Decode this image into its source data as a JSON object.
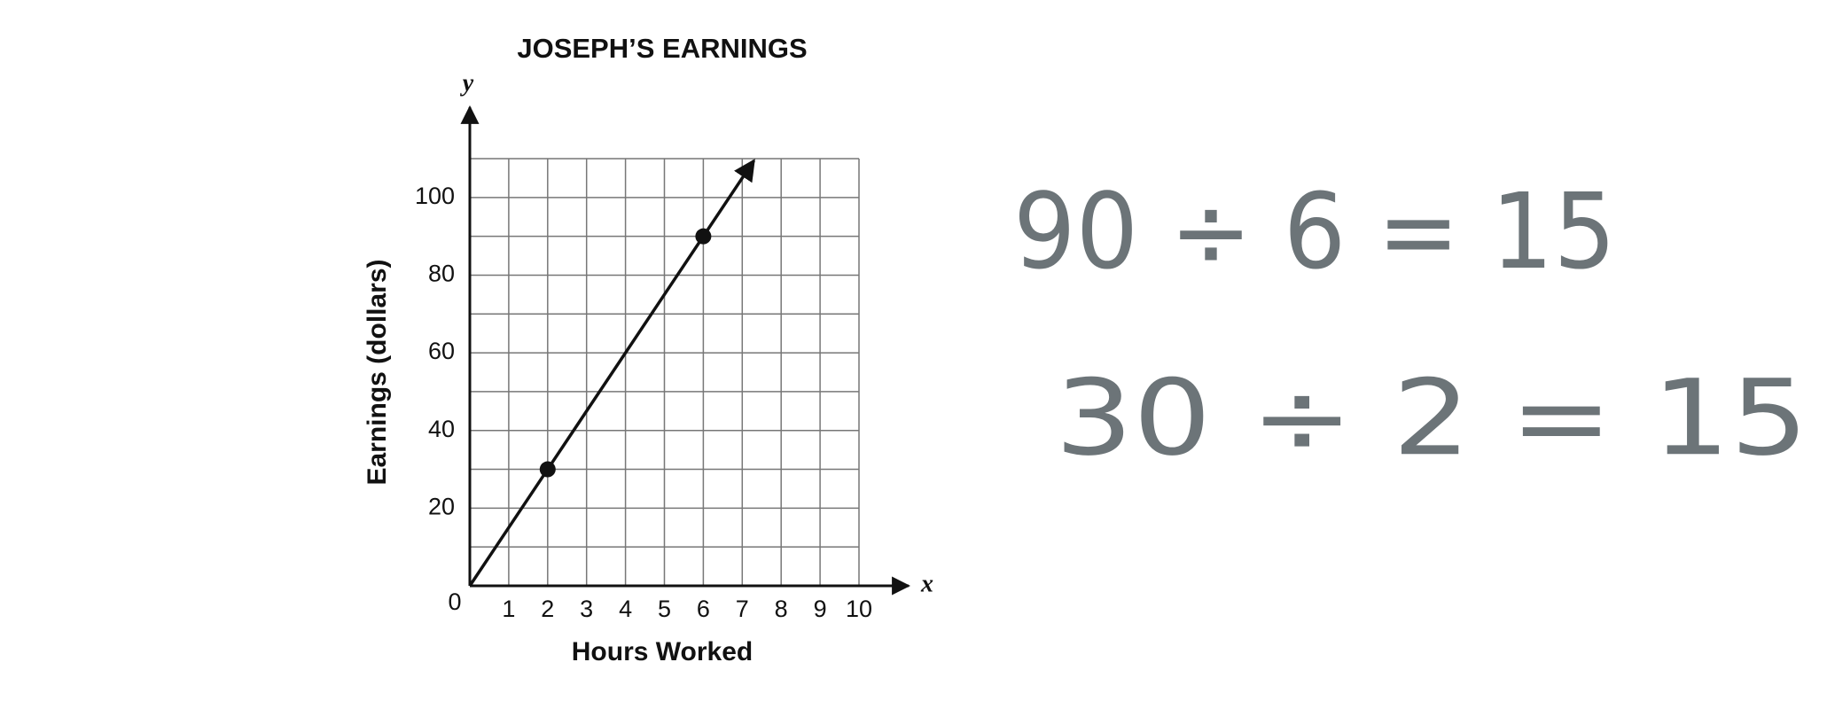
{
  "chart_data": {
    "type": "line",
    "title": "JOSEPH’S EARNINGS",
    "x_label": "Hours Worked",
    "y_label": "Earnings (dollars)",
    "x_axis_letter": "x",
    "y_axis_letter": "y",
    "xlim": [
      0,
      10
    ],
    "ylim": [
      0,
      110
    ],
    "xticks": [
      0,
      1,
      2,
      3,
      4,
      5,
      6,
      7,
      8,
      9,
      10
    ],
    "yticks": [
      20,
      40,
      60,
      80,
      100
    ],
    "minor_yticks": [
      10,
      30,
      50,
      70,
      90,
      110
    ],
    "grid": true,
    "x": [
      0,
      2,
      6,
      7.3
    ],
    "values": [
      0,
      30,
      90,
      109.5
    ],
    "color": "#111111",
    "arrow": true,
    "points": {
      "x": [
        2,
        6
      ],
      "values": [
        30,
        90
      ]
    },
    "annotations": [
      "90 ÷ 6 = 15",
      "30 ÷ 2 = 15"
    ],
    "annotation_color": "#6c7478"
  }
}
